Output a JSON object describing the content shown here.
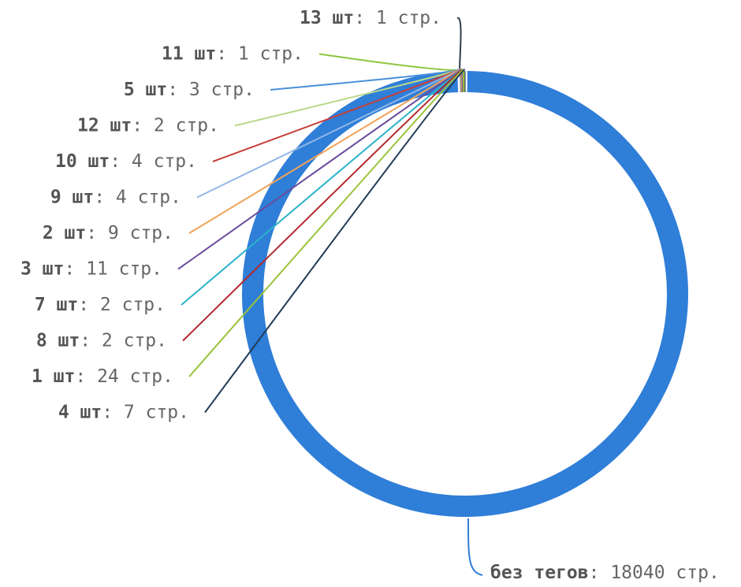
{
  "chart_data": {
    "type": "pie",
    "style": "donut",
    "unit": "стр.",
    "slices": [
      {
        "name": "без тегов",
        "value": 18040,
        "color": "#2f7ed8"
      },
      {
        "name": "4 шт",
        "value": 7,
        "color": "#1f3a55"
      },
      {
        "name": "1 шт",
        "value": 24,
        "color": "#9ac33a"
      },
      {
        "name": "8 шт",
        "value": 2,
        "color": "#b3282d"
      },
      {
        "name": "7 шт",
        "value": 2,
        "color": "#2bb3c9"
      },
      {
        "name": "3 шт",
        "value": 11,
        "color": "#6a4c9c"
      },
      {
        "name": "2 шт",
        "value": 9,
        "color": "#f0a35a"
      },
      {
        "name": "9 шт",
        "value": 4,
        "color": "#8fb6e6"
      },
      {
        "name": "10 шт",
        "value": 4,
        "color": "#c8403a"
      },
      {
        "name": "12 шт",
        "value": 2,
        "color": "#b9d98a"
      },
      {
        "name": "5 шт",
        "value": 3,
        "color": "#4a8fd8"
      },
      {
        "name": "11 шт",
        "value": 1,
        "color": "#8cc63f"
      },
      {
        "name": "13 шт",
        "value": 1,
        "color": "#2d3e50"
      }
    ]
  }
}
